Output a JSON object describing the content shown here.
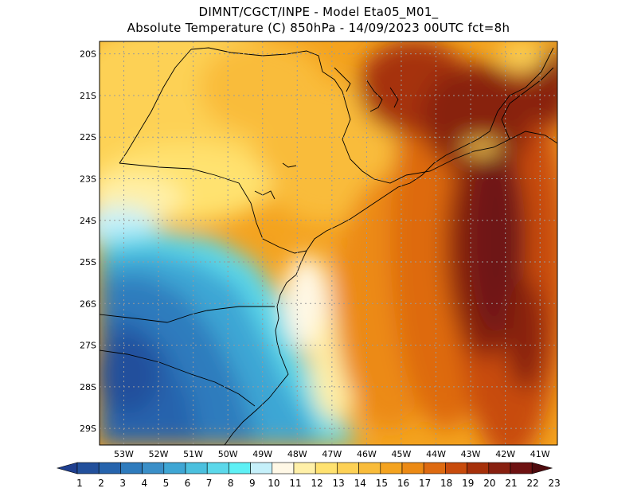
{
  "header": {
    "line1": "DIMNT/CGCT/INPE -  Model Eta05_M01_",
    "line2": "Absolute Temperature (C) 850hPa -  14/09/2023 00UTC fct=8h"
  },
  "map": {
    "lat_labels": [
      "20S",
      "21S",
      "22S",
      "23S",
      "24S",
      "25S",
      "26S",
      "27S",
      "28S",
      "29S"
    ],
    "lon_labels": [
      "53W",
      "52W",
      "51W",
      "50W",
      "49W",
      "48W",
      "47W",
      "46W",
      "45W",
      "44W",
      "43W",
      "42W",
      "41W"
    ],
    "lat_values": [
      -20,
      -21,
      -22,
      -23,
      -24,
      -25,
      -26,
      -27,
      -28,
      -29
    ],
    "lon_values": [
      -53,
      -52,
      -51,
      -50,
      -49,
      -48,
      -47,
      -46,
      -45,
      -44,
      -43,
      -42,
      -41
    ],
    "extent": {
      "lon_min": -53.7,
      "lon_max": -40.5,
      "lat_min": -29.4,
      "lat_max": -19.7
    },
    "variable": "Absolute Temperature",
    "units": "C",
    "level": "850hPa"
  },
  "colorbar": {
    "labels": [
      "1",
      "2",
      "3",
      "4",
      "5",
      "6",
      "7",
      "8",
      "9",
      "10",
      "11",
      "12",
      "13",
      "14",
      "15",
      "16",
      "17",
      "18",
      "19",
      "20",
      "21",
      "22",
      "23"
    ],
    "colors": [
      "#1f3f8f",
      "#22509c",
      "#2664ad",
      "#2e7bbd",
      "#3a8fc8",
      "#3ea6d4",
      "#4bc0de",
      "#5bd8ea",
      "#5ef0f5",
      "#c5f0fa",
      "#fff8e6",
      "#fff0a8",
      "#ffe270",
      "#fdd155",
      "#f9bc3a",
      "#f4a31f",
      "#ec8a14",
      "#de6a10",
      "#c84b0c",
      "#a6300a",
      "#882010",
      "#6e1212",
      "#4e0b0e"
    ]
  }
}
